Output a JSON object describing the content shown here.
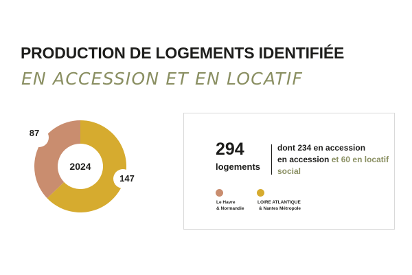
{
  "title": {
    "line1": "PRODUCTION DE LOGEMENTS IDENTIFIÉE",
    "line2": "EN ACCESSION ET EN LOCATIF"
  },
  "chart_data": {
    "type": "pie",
    "center_label": "2024",
    "slices": [
      {
        "name": "Le Havre & Normandie",
        "value": 87,
        "color": "#c98d6f"
      },
      {
        "name": "LOIRE ATLANTIQUE & Nantes Métropole",
        "value": 147,
        "color": "#d6ab2f"
      }
    ]
  },
  "summary": {
    "total": "294",
    "total_unit": "logements",
    "detail_line1": "dont 234 en accession",
    "detail_line2": "en accession",
    "detail_accent": "et 60 en locatif social"
  },
  "legend": [
    {
      "line1": "Le Havre",
      "line2": "& Normandie",
      "color": "#c98d6f"
    },
    {
      "line1": "LOIRE ATLANTIQUE",
      "line2": "& Nantes Métropole",
      "color": "#d6ab2f"
    }
  ]
}
